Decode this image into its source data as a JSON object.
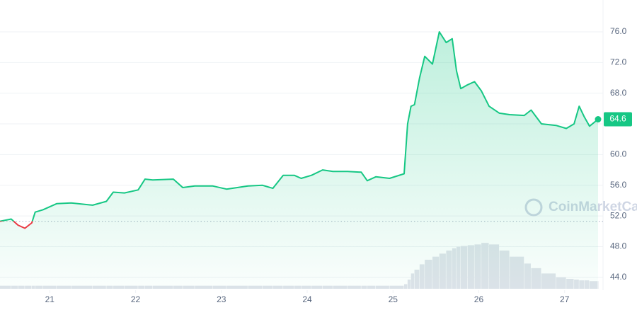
{
  "chart_data": {
    "type": "line",
    "watermark": "CoinMarketCap",
    "x": [
      20.42,
      20.55,
      20.63,
      20.71,
      20.79,
      20.83,
      20.92,
      21.08,
      21.25,
      21.5,
      21.66,
      21.74,
      21.87,
      22.03,
      22.11,
      22.2,
      22.44,
      22.55,
      22.69,
      22.9,
      23.06,
      23.31,
      23.48,
      23.6,
      23.72,
      23.85,
      23.93,
      24.05,
      24.18,
      24.3,
      24.47,
      24.63,
      24.7,
      24.8,
      24.96,
      25.13,
      25.17,
      25.21,
      25.25,
      25.31,
      25.37,
      25.46,
      25.54,
      25.62,
      25.69,
      25.74,
      25.79,
      25.87,
      25.95,
      26.03,
      26.12,
      26.24,
      26.36,
      26.53,
      26.61,
      26.73,
      26.9,
      27.02,
      27.11,
      27.17,
      27.23,
      27.29,
      27.39
    ],
    "series": [
      {
        "color": "#16c784",
        "below_color": "#ea3943",
        "values": [
          51.3,
          51.6,
          50.8,
          50.4,
          51.1,
          52.5,
          52.8,
          53.6,
          53.7,
          53.4,
          53.9,
          55.1,
          55.0,
          55.4,
          56.8,
          56.7,
          56.8,
          55.7,
          55.9,
          55.9,
          55.5,
          55.9,
          56.0,
          55.6,
          57.3,
          57.3,
          56.9,
          57.3,
          58.0,
          57.8,
          57.8,
          57.7,
          56.6,
          57.1,
          56.9,
          57.5,
          64.0,
          66.3,
          66.5,
          70.0,
          72.8,
          71.8,
          76.0,
          74.6,
          75.1,
          70.9,
          68.6,
          69.1,
          69.5,
          68.3,
          66.3,
          65.4,
          65.2,
          65.1,
          65.8,
          64.0,
          63.8,
          63.4,
          64.0,
          66.3,
          64.9,
          63.7,
          64.6
        ]
      },
      {
        "axis": "volume",
        "color": "#dfe3ea",
        "values": [
          4,
          4,
          4,
          4,
          4,
          4,
          4,
          4,
          4,
          4,
          4,
          4,
          4,
          4,
          4,
          4,
          4,
          4,
          4,
          4,
          4,
          4,
          4,
          4,
          4,
          4,
          4,
          4,
          4,
          4,
          4,
          4,
          4,
          4,
          4,
          6,
          12,
          20,
          25,
          32,
          38,
          42,
          46,
          50,
          53,
          55,
          56,
          57,
          58,
          60,
          58,
          50,
          42,
          33,
          27,
          20,
          15,
          13,
          12,
          11,
          11,
          10,
          10
        ]
      }
    ],
    "baseline": 51.3,
    "last_price": 64.6,
    "xlim": [
      20.42,
      27.39
    ],
    "xticks": [
      21,
      22,
      23,
      24,
      25,
      26,
      27
    ],
    "ylim": [
      40,
      80
    ],
    "yticks": [
      {
        "value": 44,
        "label": "44.0"
      },
      {
        "value": 48,
        "label": "48.0"
      },
      {
        "value": 52,
        "label": "52.0"
      },
      {
        "value": 56,
        "label": "56.0"
      },
      {
        "value": 60,
        "label": "60.0"
      },
      {
        "value": 64,
        "label": "64.0"
      },
      {
        "value": 68,
        "label": "68.0"
      },
      {
        "value": 72,
        "label": "72.0"
      },
      {
        "value": 76,
        "label": "76.0"
      }
    ],
    "volume_lim": [
      0,
      100
    ],
    "grid": true
  }
}
